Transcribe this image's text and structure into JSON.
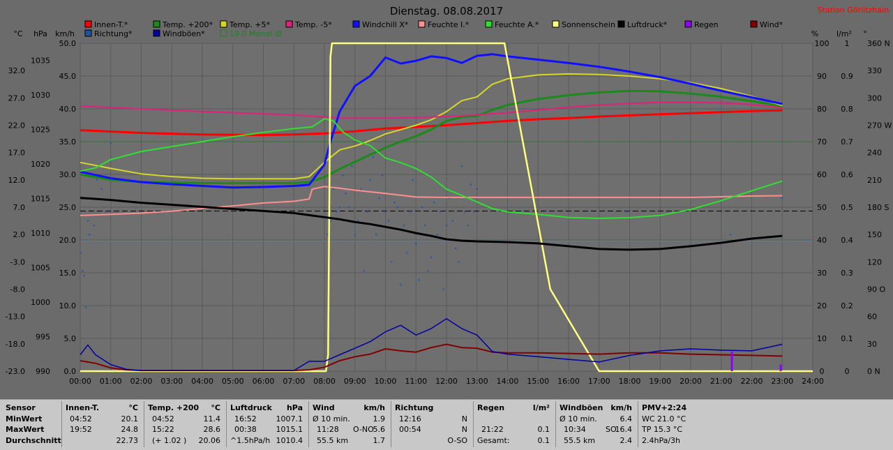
{
  "title": "Dienstag. 08.08.2017",
  "station": "Station Görlitzhain",
  "units_left": {
    "temp": "°C",
    "pressure": "hPa",
    "speed": "km/h"
  },
  "units_right": {
    "percent": "%",
    "rain": "l/m²",
    "degree": "°"
  },
  "legend": [
    {
      "label": "Innen-T.*",
      "color": "#ff0000"
    },
    {
      "label": "Temp. +200*",
      "color": "#1a8a1a"
    },
    {
      "label": "Temp. +5*",
      "color": "#d6d62a"
    },
    {
      "label": "Temp. -5*",
      "color": "#e0207a"
    },
    {
      "label": "Windchill X*",
      "color": "#1010ff"
    },
    {
      "label": "Feuchte I.*",
      "color": "#ff9090"
    },
    {
      "label": "Feuchte A.*",
      "color": "#30e030"
    },
    {
      "label": "Sonnenschein",
      "color": "#ffff80"
    },
    {
      "label": "Luftdruck*",
      "color": "#000000"
    },
    {
      "label": "Regen",
      "color": "#9000ff"
    },
    {
      "label": "Wind*",
      "color": "#800000"
    },
    {
      "label": "Richtung*",
      "color": "#2050a0"
    },
    {
      "label": "Windböen*",
      "color": "#0000a0"
    },
    {
      "label": "19.0 Monat-Ø",
      "color": "#208020"
    }
  ],
  "chart_data": {
    "type": "line",
    "title": "Dienstag. 08.08.2017",
    "x_ticks": [
      "00:00",
      "01:00",
      "02:00",
      "03:00",
      "04:00",
      "05:00",
      "06:00",
      "07:00",
      "08:00",
      "09:00",
      "10:00",
      "11:00",
      "12:00",
      "13:00",
      "14:00",
      "15:00",
      "16:00",
      "17:00",
      "18:00",
      "19:00",
      "20:00",
      "21:00",
      "22:00",
      "23:00",
      "24:00"
    ],
    "y_speed_ticks": [
      "50.0",
      "45.0",
      "40.0",
      "35.0",
      "30.0",
      "25.0",
      "20.0",
      "15.0",
      "10.0",
      "5.0",
      "0.0"
    ],
    "y_temp_ticks": [
      "32.0",
      "27.0",
      "22.0",
      "17.0",
      "12.0",
      "7.0",
      "2.0",
      "-3.0",
      "-8.0",
      "-13.0",
      "-18.0",
      "-23.0"
    ],
    "y_pressure_ticks": [
      "1035",
      "1030",
      "1025",
      "1020",
      "1015",
      "1010",
      "1005",
      "1000",
      "995",
      "990"
    ],
    "y_percent_ticks": [
      "100",
      "90",
      "80",
      "70",
      "60",
      "50",
      "40",
      "30",
      "20",
      "10",
      "0"
    ],
    "y_rain_ticks": [
      "1",
      "0.9",
      "0.8",
      "0.7",
      "0.6",
      "0.5",
      "0.4",
      "0.3",
      "0.2",
      "0.1",
      "0"
    ],
    "y_dir_ticks": [
      "360 N",
      "330",
      "300",
      "270 W",
      "240",
      "210",
      "180 S",
      "150",
      "120",
      "90 O",
      "60",
      "30",
      "0 N"
    ],
    "ranges": {
      "x_hours": [
        0,
        24
      ],
      "speed": [
        0,
        50
      ],
      "temp": [
        -23,
        37
      ],
      "pressure": [
        990,
        1037.5
      ],
      "percent": [
        0,
        100
      ],
      "rain": [
        0,
        1
      ],
      "direction": [
        0,
        360
      ]
    },
    "grid": true,
    "series": [
      {
        "name": "Innen-T.*",
        "axis": "temp",
        "x": [
          0,
          2,
          4,
          6,
          7,
          8,
          9,
          10,
          11,
          12,
          13,
          14,
          15,
          16,
          17,
          18,
          19,
          20,
          21,
          22,
          23
        ],
        "y": [
          21.1,
          20.6,
          20.3,
          20.2,
          20.3,
          20.5,
          20.9,
          21.4,
          21.7,
          22,
          22.4,
          22.8,
          23.1,
          23.3,
          23.6,
          23.8,
          24,
          24.2,
          24.4,
          24.6,
          24.7
        ]
      },
      {
        "name": "Temp. +200*",
        "axis": "temp",
        "x": [
          0,
          1,
          2,
          3,
          4,
          5,
          6,
          7,
          7.5,
          8,
          8.5,
          9,
          9.5,
          10,
          10.5,
          11,
          11.5,
          12,
          12.5,
          13,
          13.5,
          14,
          15,
          16,
          17,
          18,
          19,
          20,
          21,
          22,
          23
        ],
        "y": [
          13,
          12,
          11.6,
          11.5,
          11.4,
          11.4,
          11.4,
          11.4,
          11.6,
          12.5,
          14,
          15.3,
          16.6,
          17.9,
          19,
          20,
          21.2,
          22.8,
          23.5,
          23.7,
          24.8,
          25.7,
          26.8,
          27.5,
          28,
          28.3,
          28.2,
          27.8,
          27.2,
          26.4,
          25.5
        ]
      },
      {
        "name": "Temp. +5*",
        "axis": "temp",
        "x": [
          0,
          1,
          2,
          3,
          4,
          5,
          6,
          7,
          7.5,
          8,
          8.5,
          9,
          9.5,
          10,
          10.5,
          11,
          11.5,
          12,
          12.5,
          13,
          13.5,
          14,
          15,
          16,
          17,
          18,
          19,
          20,
          21,
          22,
          23
        ],
        "y": [
          15.2,
          14.1,
          13.1,
          12.6,
          12.3,
          12.2,
          12.2,
          12.2,
          12.6,
          15.2,
          17.5,
          18.2,
          19.2,
          20.4,
          21.2,
          22,
          23,
          24.5,
          26.5,
          27.2,
          29.5,
          30.5,
          31.2,
          31.4,
          31.3,
          31,
          30.5,
          29.8,
          28.7,
          27.3,
          25.6
        ]
      },
      {
        "name": "Temp. -5*",
        "axis": "temp",
        "x": [
          0,
          2,
          4,
          6,
          7,
          8,
          8.5,
          9,
          10,
          11,
          12,
          13,
          14,
          15,
          16,
          17,
          18,
          19,
          20,
          21,
          22,
          23
        ],
        "y": [
          25.5,
          25,
          24.5,
          24.1,
          23.9,
          23.5,
          23.3,
          23.3,
          23.3,
          23.4,
          23.6,
          23.9,
          24.3,
          24.8,
          25.3,
          25.7,
          26,
          26.2,
          26.2,
          26.1,
          25.8,
          25.2
        ]
      },
      {
        "name": "Windchill X*",
        "axis": "temp",
        "x": [
          0,
          0.5,
          1,
          2,
          3,
          4,
          5,
          6,
          7,
          7.5,
          8,
          8.2,
          8.5,
          9,
          9.5,
          10,
          10.5,
          11,
          11.5,
          12,
          12.5,
          13,
          13.5,
          14,
          15,
          16,
          17,
          18,
          19,
          20,
          21,
          22,
          23
        ],
        "y": [
          13.5,
          12.9,
          12.3,
          11.6,
          11.2,
          10.9,
          10.6,
          10.7,
          10.9,
          11.1,
          14.8,
          19,
          24.5,
          29.2,
          31,
          34.4,
          33.3,
          33.8,
          34.6,
          34.3,
          33.4,
          34.7,
          35,
          34.6,
          34,
          33.4,
          32.7,
          31.8,
          30.8,
          29.6,
          28.3,
          27.1,
          25.9
        ]
      },
      {
        "name": "Feuchte I.*",
        "axis": "percent",
        "x": [
          0,
          1,
          2,
          3,
          4,
          5,
          6,
          7,
          7.5,
          7.6,
          8,
          8.5,
          9,
          10,
          11,
          12,
          13,
          14,
          16,
          18,
          20,
          22,
          23
        ],
        "y": [
          47.5,
          47.8,
          48.2,
          48.8,
          49.6,
          50.4,
          51.3,
          51.8,
          52.5,
          55.5,
          56.3,
          55.8,
          55.2,
          54.2,
          53.1,
          53,
          53,
          53,
          53,
          53,
          53,
          53.4,
          53.5
        ]
      },
      {
        "name": "Feuchte A.*",
        "axis": "percent",
        "x": [
          0,
          0.5,
          1,
          2,
          3,
          4,
          5,
          6,
          7,
          7.6,
          8,
          8.3,
          8.6,
          9,
          9.5,
          10,
          10.5,
          11,
          11.5,
          12,
          12.5,
          13,
          13.5,
          14,
          15,
          16,
          17,
          18,
          19,
          20,
          21,
          22,
          23
        ],
        "y": [
          61,
          62,
          64.5,
          67,
          68.5,
          70,
          71.5,
          72.8,
          74,
          74.5,
          77,
          76.3,
          73,
          70.5,
          68.8,
          65,
          63.6,
          61.8,
          59.2,
          55.5,
          53.6,
          51.6,
          49.6,
          48.6,
          47.8,
          46.9,
          46.6,
          46.8,
          47.5,
          49.3,
          52,
          55,
          58
        ]
      },
      {
        "name": "Sonnenschein",
        "axis": "percent",
        "x": [
          0,
          8.05,
          8.12,
          8.2,
          8.25,
          13.9,
          15.4,
          17.0,
          18.0,
          24
        ],
        "y": [
          0,
          0,
          5,
          96,
          100,
          100,
          25,
          0,
          0,
          0
        ]
      },
      {
        "name": "Luftdruck*",
        "axis": "pressure",
        "x": [
          0,
          1,
          2,
          3,
          4,
          5,
          6,
          7,
          7.5,
          8,
          8.5,
          9,
          9.5,
          10,
          10.5,
          11,
          11.5,
          12,
          12.5,
          13,
          14,
          15,
          16,
          17,
          18,
          19,
          20,
          21,
          22,
          23
        ],
        "y": [
          1015.1,
          1014.8,
          1014.4,
          1014.1,
          1013.8,
          1013.5,
          1013.2,
          1012.9,
          1012.6,
          1012.3,
          1012,
          1011.6,
          1011.3,
          1010.9,
          1010.5,
          1010,
          1009.6,
          1009.1,
          1008.9,
          1008.8,
          1008.7,
          1008.5,
          1008.1,
          1007.7,
          1007.6,
          1007.7,
          1008.1,
          1008.6,
          1009.2,
          1009.6
        ]
      },
      {
        "name": "Wind*",
        "axis": "speed",
        "x": [
          0,
          0.5,
          1,
          1.5,
          2,
          3,
          4,
          5,
          6,
          7,
          7.5,
          8,
          8.5,
          9,
          9.5,
          10,
          10.5,
          11,
          11.5,
          12,
          12.5,
          13,
          13.5,
          14,
          15,
          16,
          17,
          18,
          19,
          20,
          21,
          22,
          23
        ],
        "y": [
          1.6,
          1.2,
          0.5,
          0.2,
          0.1,
          0.1,
          0.1,
          0.1,
          0.1,
          0.1,
          0.2,
          0.6,
          1.6,
          2.2,
          2.6,
          3.4,
          3.1,
          2.9,
          3.6,
          4.1,
          3.6,
          3.5,
          2.9,
          2.8,
          2.8,
          2.7,
          2.6,
          2.8,
          2.8,
          2.6,
          2.5,
          2.4,
          2.3
        ]
      },
      {
        "name": "Windböen*",
        "axis": "speed",
        "x": [
          0,
          0.25,
          0.5,
          1,
          1.5,
          2,
          7,
          7.5,
          8,
          8.5,
          9,
          9.5,
          10,
          10.5,
          11,
          11.5,
          12,
          12.5,
          13,
          13.5,
          14,
          15,
          16,
          17,
          18,
          19,
          20,
          21,
          22,
          23
        ],
        "y": [
          2.5,
          4,
          2.5,
          1,
          0.3,
          0.1,
          0.1,
          1.5,
          1.5,
          2.5,
          3.5,
          4.5,
          6,
          7,
          5.5,
          6.5,
          8,
          6.5,
          5.5,
          3,
          2.6,
          2.2,
          1.8,
          1.4,
          2.4,
          3.1,
          3.4,
          3.2,
          3.1,
          4.1
        ]
      },
      {
        "name": "Regen",
        "axis": "rain",
        "x": [
          21.35,
          22.95
        ],
        "y": [
          0.06,
          0.02
        ]
      }
    ],
    "reference_lines": [
      {
        "name": "19.0 Monat-Ø",
        "axis": "temp",
        "value": 19.0,
        "color": "#208020",
        "style": "dashed"
      },
      {
        "name": "Luftdruck-Ø",
        "axis": "pressure",
        "value": 1013.2,
        "color": "#000000",
        "style": "dashed"
      },
      {
        "name": "Feuchte-Ø",
        "axis": "percent",
        "value": 39.7,
        "color": "#20a0a0",
        "style": "solid"
      }
    ],
    "direction_points": {
      "axis": "direction",
      "x": [
        0.02,
        0.08,
        0.13,
        0.18,
        0.25,
        0.3,
        0.35,
        0.45,
        0.55,
        0.7,
        0.85,
        1,
        8.1,
        8.2,
        8.3,
        8.4,
        8.5,
        8.6,
        8.7,
        8.8,
        8.9,
        9,
        9.1,
        9.2,
        9.3,
        9.4,
        9.5,
        9.6,
        9.7,
        9.8,
        9.9,
        10,
        10.1,
        10.2,
        10.3,
        10.4,
        10.5,
        10.6,
        10.7,
        10.8,
        10.9,
        11,
        11.1,
        11.2,
        11.3,
        11.4,
        11.5,
        11.6,
        11.7,
        11.8,
        11.9,
        12,
        12.1,
        12.2,
        12.3,
        12.4,
        12.5,
        12.6,
        12.7,
        12.8,
        12.9,
        13,
        17.9,
        21.3,
        23
      ],
      "y": [
        130,
        110,
        105,
        70,
        165,
        150,
        190,
        160,
        210,
        200,
        175,
        250,
        150,
        165,
        200,
        175,
        180,
        215,
        195,
        180,
        225,
        150,
        165,
        200,
        110,
        175,
        210,
        235,
        150,
        190,
        215,
        175,
        165,
        120,
        185,
        180,
        95,
        160,
        130,
        175,
        210,
        140,
        100,
        180,
        160,
        110,
        125,
        185,
        150,
        175,
        90,
        160,
        190,
        165,
        135,
        120,
        225,
        175,
        160,
        205,
        175,
        200,
        175,
        150,
        190
      ]
    }
  },
  "stats": {
    "sensor": {
      "header": "Sensor",
      "rows": [
        "MinWert",
        "MaxWert",
        "Durchschnitt"
      ]
    },
    "innen": {
      "header": "Innen-T.",
      "unit": "°C",
      "rows": [
        [
          "04:52",
          "20.1"
        ],
        [
          "19:52",
          "24.8"
        ],
        [
          "",
          "22.73"
        ]
      ]
    },
    "temp200": {
      "header": "Temp. +200",
      "unit": "°C",
      "rows": [
        [
          "04:52",
          "11.4"
        ],
        [
          "15:22",
          "28.6"
        ],
        [
          "(+ 1.02 )",
          "20.06"
        ]
      ]
    },
    "luftdruck": {
      "header": "Luftdruck",
      "unit": "hPa",
      "rows": [
        [
          "16:52",
          "1007.1"
        ],
        [
          "00:38",
          "1015.1"
        ],
        [
          "^1.5hPa/h",
          "1010.4"
        ]
      ]
    },
    "wind": {
      "header": "Wind",
      "unit": "km/h",
      "rows": [
        [
          "Ø 10 min.",
          "",
          "1.9"
        ],
        [
          "11:28",
          "O-NO",
          "5.6"
        ],
        [
          "55.5 km",
          "",
          "1.7"
        ]
      ]
    },
    "richtung": {
      "header": "Richtung",
      "unit": "",
      "rows": [
        [
          "12:16",
          "N"
        ],
        [
          "00:54",
          "N"
        ],
        [
          "",
          "O-SO"
        ]
      ]
    },
    "regen": {
      "header": "Regen",
      "unit": "l/m²",
      "rows": [
        [
          "",
          ""
        ],
        [
          "21:22",
          "0.1"
        ],
        [
          "Gesamt:",
          "0.1"
        ]
      ]
    },
    "windboeen": {
      "header": "Windböen",
      "unit": "km/h",
      "rows": [
        [
          "Ø 10 min.",
          "",
          "6.4"
        ],
        [
          "10:34",
          "SO",
          "16.4"
        ],
        [
          "55.5 km",
          "",
          "2.4"
        ]
      ]
    },
    "pmv": {
      "header": "PMV+2:24",
      "rows": [
        "WC 21.0 °C",
        "TP 15.3 °C",
        "2.4hPa/3h"
      ]
    }
  }
}
